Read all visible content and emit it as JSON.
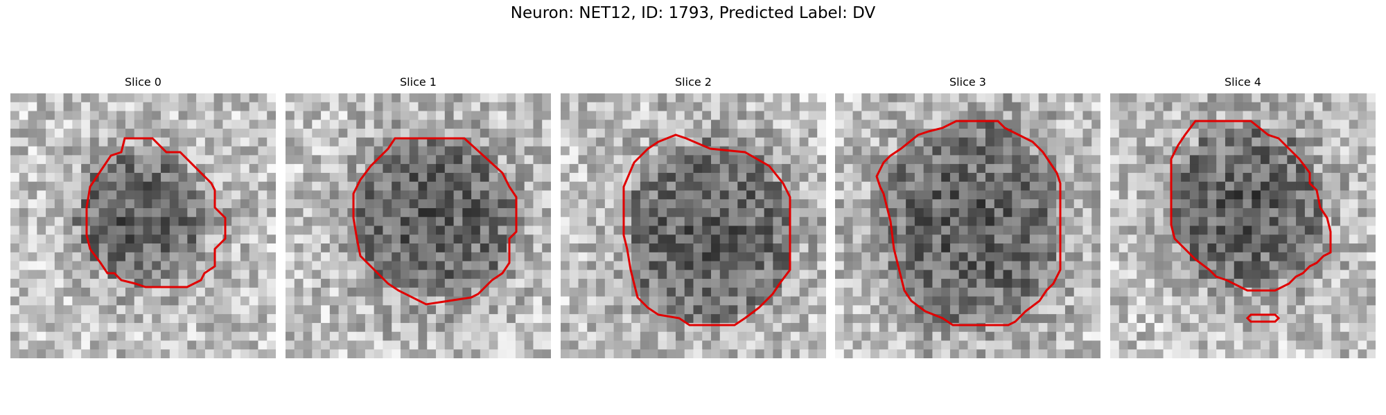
{
  "figure": {
    "title": "Neuron: NET12, ID: 1793, Predicted Label: DV",
    "contour_color": "#e00000"
  },
  "slices": [
    {
      "title": "Slice 0"
    },
    {
      "title": "Slice 1"
    },
    {
      "title": "Slice 2"
    },
    {
      "title": "Slice 3"
    },
    {
      "title": "Slice 4"
    }
  ]
}
